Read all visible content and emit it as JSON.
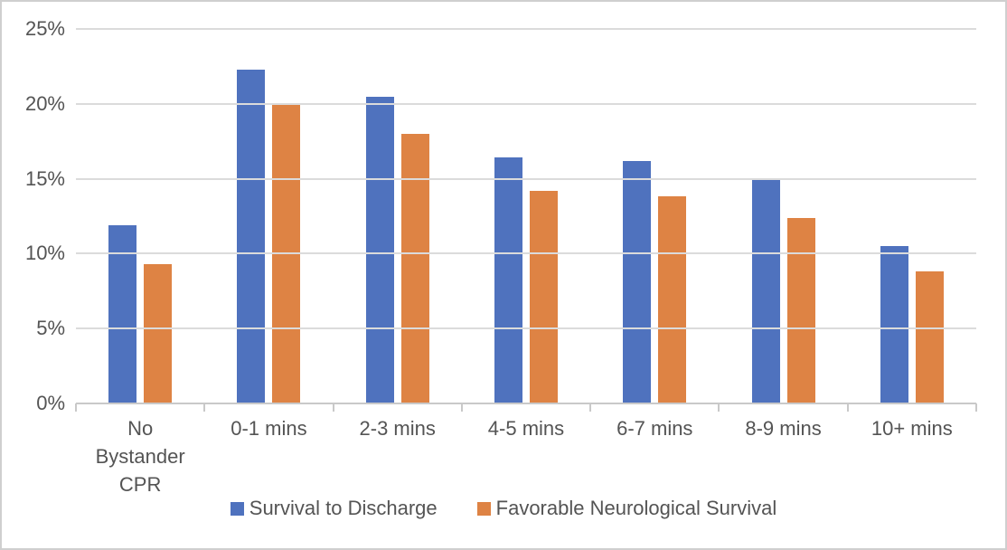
{
  "chart_data": {
    "type": "bar",
    "title": "",
    "xlabel": "",
    "ylabel": "",
    "categories": [
      "No Bystander CPR",
      "0-1 mins",
      "2-3 mins",
      "4-5 mins",
      "6-7 mins",
      "8-9 mins",
      "10+ mins"
    ],
    "series": [
      {
        "name": "Survival to Discharge",
        "color": "#4F72BE",
        "values": [
          11.9,
          22.3,
          20.5,
          16.4,
          16.2,
          15.0,
          10.5
        ]
      },
      {
        "name": "Favorable Neurological Survival",
        "color": "#DE8344",
        "values": [
          9.3,
          20.0,
          18.0,
          14.2,
          13.8,
          12.4,
          8.8
        ]
      }
    ],
    "ylim": [
      0,
      25
    ],
    "y_tick_values": [
      0,
      5,
      10,
      15,
      20,
      25
    ],
    "y_tick_labels": [
      "0%",
      "5%",
      "10%",
      "15%",
      "20%",
      "25%"
    ],
    "grid": true,
    "legend_position": "bottom",
    "colors": {
      "gridline": "#dbdbdb",
      "axis_line": "#c9c9c9",
      "text": "#545454"
    }
  }
}
